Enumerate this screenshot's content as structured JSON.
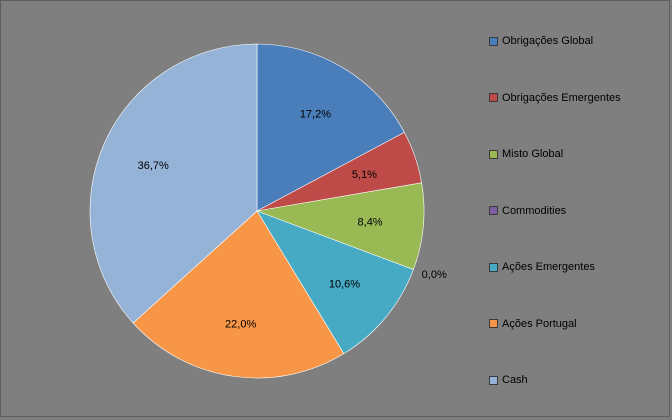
{
  "chart_data": {
    "type": "pie",
    "categories": [
      "Obrigações Global",
      "Obrigações Emergentes",
      "Misto Global",
      "Commodities",
      "Ações Emergentes",
      "Ações Portugal",
      "Cash"
    ],
    "values": [
      17.2,
      5.1,
      8.4,
      0.0,
      10.6,
      22.0,
      36.7
    ],
    "labels": [
      "17,2%",
      "5,1%",
      "8,4%",
      "0,0%",
      "10,6%",
      "22,0%",
      "36,7%"
    ],
    "colors": [
      "#4a7ebb",
      "#be4b48",
      "#98b954",
      "#7d60a0",
      "#46aac5",
      "#f79646",
      "#95b3d7"
    ],
    "legend_position": "right",
    "start_angle": "12 o'clock",
    "direction": "clockwise"
  }
}
